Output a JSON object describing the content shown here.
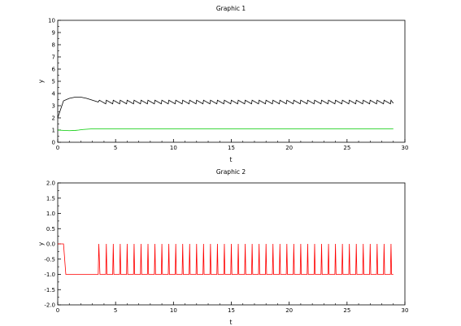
{
  "chart_data": [
    {
      "type": "line",
      "title": "Graphic 1",
      "xlabel": "t",
      "ylabel": "y",
      "xlim": [
        0,
        30
      ],
      "ylim": [
        0,
        10
      ],
      "x_ticks": [
        0,
        5,
        10,
        15,
        20,
        25,
        30
      ],
      "y_ticks": [
        0,
        1,
        2,
        3,
        4,
        5,
        6,
        7,
        8,
        9,
        10
      ],
      "grid": false,
      "series": [
        {
          "color": "#000000",
          "x": [
            0.0,
            0.5,
            1.0,
            1.5,
            2.0,
            2.5,
            3.0,
            3.5,
            3.6,
            4.15,
            4.2,
            4.75,
            4.8,
            5.35,
            5.4,
            5.95,
            6.0,
            6.55,
            6.6,
            7.15,
            7.2,
            7.75,
            7.8,
            8.35,
            8.4,
            8.95,
            9.0,
            9.55,
            9.6,
            10.15,
            10.2,
            10.75,
            10.8,
            11.35,
            11.4,
            11.95,
            12.0,
            12.55,
            12.6,
            13.15,
            13.2,
            13.75,
            13.8,
            14.35,
            14.4,
            14.95,
            15.0,
            15.55,
            15.6,
            16.15,
            16.2,
            16.75,
            16.8,
            17.35,
            17.4,
            17.95,
            18.0,
            18.55,
            18.6,
            19.15,
            19.2,
            19.75,
            19.8,
            20.35,
            20.4,
            20.95,
            21.0,
            21.55,
            21.6,
            22.15,
            22.2,
            22.75,
            22.8,
            23.35,
            23.4,
            23.95,
            24.0,
            24.55,
            24.6,
            25.15,
            25.2,
            25.75,
            25.8,
            26.35,
            26.4,
            26.95,
            27.0,
            27.55,
            27.6,
            28.15,
            28.2,
            28.75,
            28.8,
            29.0
          ],
          "y": [
            2.0,
            3.4,
            3.6,
            3.7,
            3.7,
            3.6,
            3.45,
            3.3,
            3.45,
            3.15,
            3.45,
            3.15,
            3.45,
            3.15,
            3.45,
            3.15,
            3.45,
            3.15,
            3.45,
            3.15,
            3.45,
            3.15,
            3.45,
            3.15,
            3.45,
            3.15,
            3.45,
            3.15,
            3.45,
            3.15,
            3.45,
            3.15,
            3.45,
            3.15,
            3.45,
            3.15,
            3.45,
            3.15,
            3.45,
            3.15,
            3.45,
            3.15,
            3.45,
            3.15,
            3.45,
            3.15,
            3.45,
            3.15,
            3.45,
            3.15,
            3.45,
            3.15,
            3.45,
            3.15,
            3.45,
            3.15,
            3.45,
            3.15,
            3.45,
            3.15,
            3.45,
            3.15,
            3.45,
            3.15,
            3.45,
            3.15,
            3.45,
            3.15,
            3.45,
            3.15,
            3.45,
            3.15,
            3.45,
            3.15,
            3.45,
            3.15,
            3.45,
            3.15,
            3.45,
            3.15,
            3.45,
            3.15,
            3.45,
            3.15,
            3.45,
            3.15,
            3.45,
            3.15,
            3.45,
            3.15,
            3.45,
            3.15,
            3.45,
            3.2
          ]
        },
        {
          "color": "#00cc00",
          "x": [
            0.0,
            1.0,
            1.5,
            1.8,
            2.2,
            3.0,
            29.0
          ],
          "y": [
            1.0,
            0.95,
            0.97,
            1.0,
            1.05,
            1.1,
            1.1
          ]
        }
      ]
    },
    {
      "type": "line",
      "title": "Graphic 2",
      "xlabel": "t",
      "ylabel": "y",
      "xlim": [
        0,
        30
      ],
      "ylim": [
        -2.0,
        2.0
      ],
      "x_ticks": [
        0,
        5,
        10,
        15,
        20,
        25,
        30
      ],
      "y_ticks": [
        -2.0,
        -1.5,
        -1.0,
        -0.5,
        0.0,
        0.5,
        1.0,
        1.5,
        2.0
      ],
      "grid": false,
      "series": [
        {
          "color": "#ff0000",
          "x": [
            0.0,
            0.5,
            0.7,
            3.5,
            3.55,
            3.65,
            4.15,
            4.2,
            4.25,
            4.75,
            4.8,
            4.85,
            5.35,
            5.4,
            5.45,
            5.95,
            6.0,
            6.05,
            6.55,
            6.6,
            6.65,
            7.15,
            7.2,
            7.25,
            7.75,
            7.8,
            7.85,
            8.35,
            8.4,
            8.45,
            8.95,
            9.0,
            9.05,
            9.55,
            9.6,
            9.65,
            10.15,
            10.2,
            10.25,
            10.75,
            10.8,
            10.85,
            11.35,
            11.4,
            11.45,
            11.95,
            12.0,
            12.05,
            12.55,
            12.6,
            12.65,
            13.15,
            13.2,
            13.25,
            13.75,
            13.8,
            13.85,
            14.35,
            14.4,
            14.45,
            14.95,
            15.0,
            15.05,
            15.55,
            15.6,
            15.65,
            16.15,
            16.2,
            16.25,
            16.75,
            16.8,
            16.85,
            17.35,
            17.4,
            17.45,
            17.95,
            18.0,
            18.05,
            18.55,
            18.6,
            18.65,
            19.15,
            19.2,
            19.25,
            19.75,
            19.8,
            19.85,
            20.35,
            20.4,
            20.45,
            20.95,
            21.0,
            21.05,
            21.55,
            21.6,
            21.65,
            22.15,
            22.2,
            22.25,
            22.75,
            22.8,
            22.85,
            23.35,
            23.4,
            23.45,
            23.95,
            24.0,
            24.05,
            24.55,
            24.6,
            24.65,
            25.15,
            25.2,
            25.25,
            25.75,
            25.8,
            25.85,
            26.35,
            26.4,
            26.45,
            26.95,
            27.0,
            27.05,
            27.55,
            27.6,
            27.65,
            28.15,
            28.2,
            28.25,
            28.75,
            28.8,
            28.85,
            29.0
          ],
          "y": [
            0.0,
            0.0,
            -1.0,
            -1.0,
            0.0,
            -1.0,
            -1.0,
            0.0,
            -1.0,
            -1.0,
            0.0,
            -1.0,
            -1.0,
            0.0,
            -1.0,
            -1.0,
            0.0,
            -1.0,
            -1.0,
            0.0,
            -1.0,
            -1.0,
            0.0,
            -1.0,
            -1.0,
            0.0,
            -1.0,
            -1.0,
            0.0,
            -1.0,
            -1.0,
            0.0,
            -1.0,
            -1.0,
            0.0,
            -1.0,
            -1.0,
            0.0,
            -1.0,
            -1.0,
            0.0,
            -1.0,
            -1.0,
            0.0,
            -1.0,
            -1.0,
            0.0,
            -1.0,
            -1.0,
            0.0,
            -1.0,
            -1.0,
            0.0,
            -1.0,
            -1.0,
            0.0,
            -1.0,
            -1.0,
            0.0,
            -1.0,
            -1.0,
            0.0,
            -1.0,
            -1.0,
            0.0,
            -1.0,
            -1.0,
            0.0,
            -1.0,
            -1.0,
            0.0,
            -1.0,
            -1.0,
            0.0,
            -1.0,
            -1.0,
            0.0,
            -1.0,
            -1.0,
            0.0,
            -1.0,
            -1.0,
            0.0,
            -1.0,
            -1.0,
            0.0,
            -1.0,
            -1.0,
            0.0,
            -1.0,
            -1.0,
            0.0,
            -1.0,
            -1.0,
            0.0,
            -1.0,
            -1.0,
            0.0,
            -1.0,
            -1.0,
            0.0,
            -1.0,
            -1.0,
            0.0,
            -1.0,
            -1.0,
            0.0,
            -1.0,
            -1.0,
            0.0,
            -1.0,
            -1.0,
            0.0,
            -1.0,
            -1.0,
            0.0,
            -1.0,
            -1.0,
            0.0,
            -1.0,
            -1.0,
            0.0,
            -1.0,
            -1.0,
            0.0,
            -1.0,
            -1.0,
            0.0,
            -1.0,
            -1.0,
            0.0,
            -1.0,
            -1.0
          ]
        }
      ]
    }
  ]
}
